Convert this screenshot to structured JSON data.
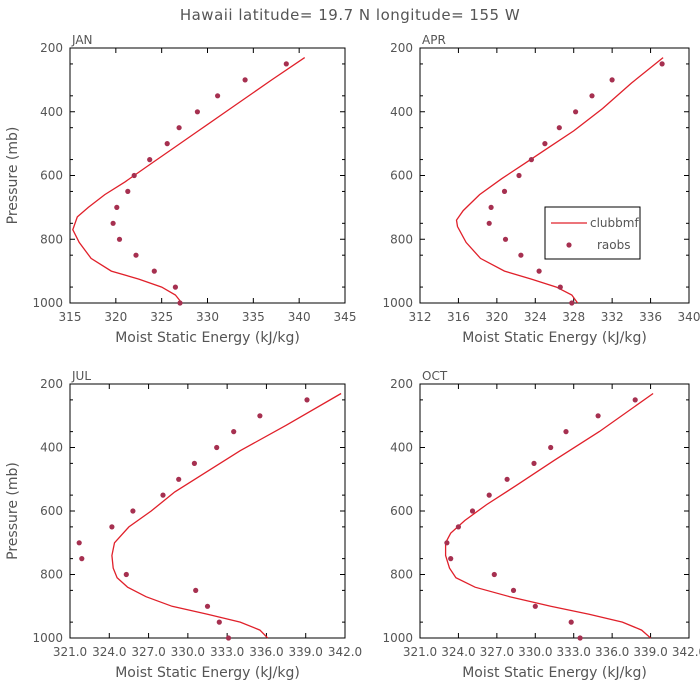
{
  "figure": {
    "title": "Hawaii  latitude= 19.7 N longitude= 155 W"
  },
  "colors": {
    "model": "#e0202a",
    "obs": "#a63050"
  },
  "chart_data": [
    {
      "type": "line",
      "panel_label": "JAN",
      "xlabel": "Moist Static Energy (kJ/kg)",
      "ylabel": "Pressure (mb)",
      "xlim": [
        315,
        345
      ],
      "ylim": [
        1000,
        200
      ],
      "xticks": [
        315,
        320,
        325,
        330,
        335,
        340,
        345
      ],
      "xtick_labels": [
        "315",
        "320",
        "325",
        "330",
        "335",
        "340",
        "345"
      ],
      "yticks": [
        1000,
        800,
        600,
        400,
        200
      ],
      "ytick_labels": [
        "1000",
        "800",
        "600",
        "400",
        "200"
      ],
      "legend": null,
      "series": [
        {
          "name": "clubbmf",
          "kind": "line",
          "x": [
            327.2,
            326.5,
            325.0,
            322.5,
            319.5,
            317.3,
            316.0,
            315.3,
            315.8,
            317.0,
            318.8,
            321.0,
            323.5,
            326.0,
            329.0,
            333.0,
            337.0,
            340.6
          ],
          "y": [
            1000,
            975,
            950,
            925,
            900,
            860,
            810,
            770,
            730,
            700,
            660,
            620,
            570,
            520,
            460,
            380,
            300,
            230
          ]
        },
        {
          "name": "raobs",
          "kind": "points",
          "x": [
            327.0,
            326.5,
            324.2,
            322.2,
            320.4,
            319.7,
            320.1,
            321.3,
            322.0,
            323.7,
            325.6,
            326.9,
            328.9,
            331.1,
            334.1,
            338.6
          ],
          "y": [
            1000,
            950,
            900,
            850,
            800,
            750,
            700,
            650,
            600,
            550,
            500,
            450,
            400,
            350,
            300,
            250
          ]
        }
      ]
    },
    {
      "type": "line",
      "panel_label": "APR",
      "xlabel": "Moist Static Energy (kJ/kg)",
      "ylabel": "",
      "xlim": [
        312,
        340
      ],
      "ylim": [
        1000,
        200
      ],
      "xticks": [
        312,
        316,
        320,
        324,
        328,
        332,
        336,
        340
      ],
      "xtick_labels": [
        "312",
        "316",
        "320",
        "324",
        "328",
        "332",
        "336",
        "340"
      ],
      "yticks": [
        1000,
        800,
        600,
        400,
        200
      ],
      "ytick_labels": [
        "1000",
        "800",
        "600",
        "400",
        "200"
      ],
      "legend": {
        "position": "center-right",
        "entries": [
          "clubbmf",
          "raobs"
        ]
      },
      "series": [
        {
          "name": "clubbmf",
          "kind": "line",
          "x": [
            328.4,
            327.8,
            326.2,
            323.6,
            320.8,
            318.3,
            316.8,
            315.9,
            315.8,
            316.5,
            318.2,
            320.5,
            323.0,
            325.5,
            328.0,
            331.0,
            334.0,
            337.3
          ],
          "y": [
            1000,
            975,
            950,
            925,
            900,
            860,
            810,
            760,
            740,
            710,
            660,
            610,
            560,
            510,
            460,
            390,
            310,
            230
          ]
        },
        {
          "name": "raobs",
          "kind": "points",
          "x": [
            327.8,
            326.6,
            324.4,
            322.5,
            320.9,
            319.2,
            319.4,
            320.8,
            322.3,
            323.6,
            325.0,
            326.5,
            328.2,
            329.9,
            332.0,
            337.2
          ],
          "y": [
            1000,
            950,
            900,
            850,
            800,
            750,
            700,
            650,
            600,
            550,
            500,
            450,
            400,
            350,
            300,
            250
          ]
        }
      ]
    },
    {
      "type": "line",
      "panel_label": "JUL",
      "xlabel": "Moist Static Energy (kJ/kg)",
      "ylabel": "Pressure (mb)",
      "xlim": [
        321.0,
        342.0
      ],
      "ylim": [
        1000,
        200
      ],
      "xticks": [
        321.0,
        324.0,
        327.0,
        330.0,
        333.0,
        336.0,
        339.0,
        342.0
      ],
      "xtick_labels": [
        "321.0",
        "324.0",
        "327.0",
        "330.0",
        "333.0",
        "336.0",
        "339.0",
        "342.0"
      ],
      "yticks": [
        1000,
        800,
        600,
        400,
        200
      ],
      "ytick_labels": [
        "1000",
        "800",
        "600",
        "400",
        "200"
      ],
      "legend": null,
      "series": [
        {
          "name": "clubbmf",
          "kind": "line",
          "x": [
            336.1,
            335.5,
            334.0,
            331.5,
            328.8,
            326.8,
            325.4,
            324.6,
            324.3,
            324.2,
            324.4,
            325.5,
            327.2,
            329.0,
            331.3,
            334.0,
            337.5,
            341.7
          ],
          "y": [
            1000,
            975,
            950,
            925,
            900,
            870,
            840,
            810,
            780,
            740,
            700,
            650,
            600,
            540,
            480,
            410,
            330,
            230
          ]
        },
        {
          "name": "raobs",
          "kind": "points",
          "x": [
            333.1,
            332.4,
            331.5,
            330.6,
            325.3,
            321.9,
            321.7,
            324.2,
            325.8,
            328.1,
            329.3,
            330.5,
            332.2,
            333.5,
            335.5,
            339.1
          ],
          "y": [
            1000,
            950,
            900,
            850,
            800,
            750,
            700,
            650,
            600,
            550,
            500,
            450,
            400,
            350,
            300,
            250
          ]
        }
      ]
    },
    {
      "type": "line",
      "panel_label": "OCT",
      "xlabel": "Moist Static Energy (kJ/kg)",
      "ylabel": "",
      "xlim": [
        321.0,
        342.0
      ],
      "ylim": [
        1000,
        200
      ],
      "xticks": [
        321.0,
        324.0,
        327.0,
        330.0,
        333.0,
        336.0,
        339.0,
        342.0
      ],
      "xtick_labels": [
        "321.0",
        "324.0",
        "327.0",
        "330.0",
        "333.0",
        "336.0",
        "339.0",
        "342.0"
      ],
      "yticks": [
        1000,
        800,
        600,
        400,
        200
      ],
      "ytick_labels": [
        "1000",
        "800",
        "600",
        "400",
        "200"
      ],
      "legend": null,
      "series": [
        {
          "name": "clubbmf",
          "kind": "line",
          "x": [
            339.0,
            338.3,
            336.8,
            334.2,
            331.2,
            328.0,
            325.3,
            323.8,
            323.3,
            323.0,
            323.0,
            323.4,
            324.5,
            326.2,
            328.5,
            331.5,
            335.0,
            339.2
          ],
          "y": [
            1000,
            975,
            950,
            925,
            900,
            870,
            840,
            810,
            780,
            740,
            700,
            670,
            630,
            580,
            520,
            440,
            350,
            230
          ]
        },
        {
          "name": "raobs",
          "kind": "points",
          "x": [
            333.5,
            332.8,
            330.0,
            328.3,
            326.8,
            323.4,
            323.1,
            324.0,
            325.1,
            326.4,
            327.8,
            329.9,
            331.2,
            332.4,
            334.9,
            337.8
          ],
          "y": [
            1000,
            950,
            900,
            850,
            800,
            750,
            700,
            650,
            600,
            550,
            500,
            450,
            400,
            350,
            300,
            250
          ]
        }
      ]
    }
  ]
}
